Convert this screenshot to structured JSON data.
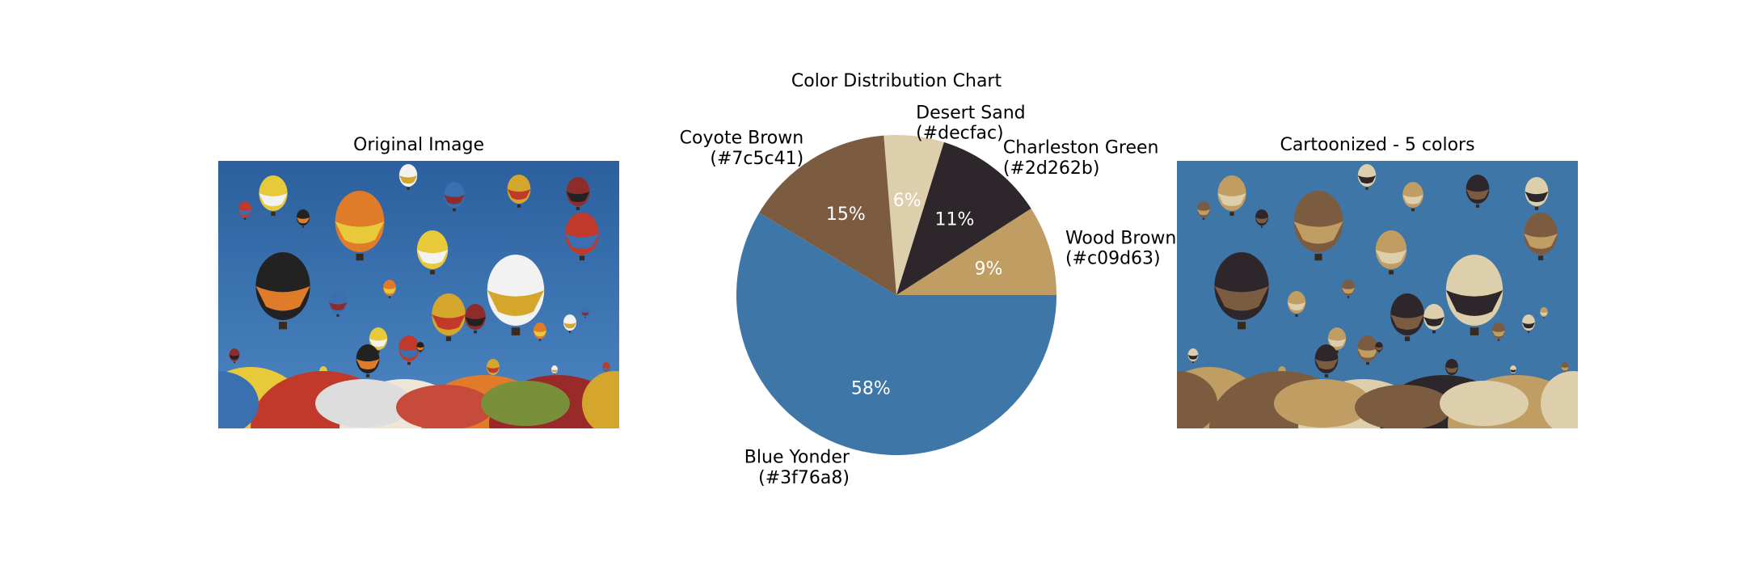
{
  "left_panel": {
    "title": "Original Image"
  },
  "right_panel": {
    "title": "Cartoonized - 5 colors"
  },
  "chart_data": {
    "type": "pie",
    "title": "Color Distribution Chart",
    "slices": [
      {
        "name": "Wood Brown",
        "hex": "(#c09d63)",
        "color": "#c09d63",
        "percent": 9,
        "pct_label": "9%"
      },
      {
        "name": "Charleston Green",
        "hex": "(#2d262b)",
        "color": "#2d262b",
        "percent": 11,
        "pct_label": "11%"
      },
      {
        "name": "Desert Sand",
        "hex": "(#decfac)",
        "color": "#decfac",
        "percent": 6,
        "pct_label": "6%"
      },
      {
        "name": "Coyote Brown",
        "hex": "(#7c5c41)",
        "color": "#7c5c41",
        "percent": 15,
        "pct_label": "15%"
      },
      {
        "name": "Blue Yonder",
        "hex": "(#3f76a8)",
        "color": "#3f76a8",
        "percent": 58,
        "pct_label": "58%"
      }
    ],
    "start_angle_deg": 0,
    "direction": "counterclockwise"
  }
}
